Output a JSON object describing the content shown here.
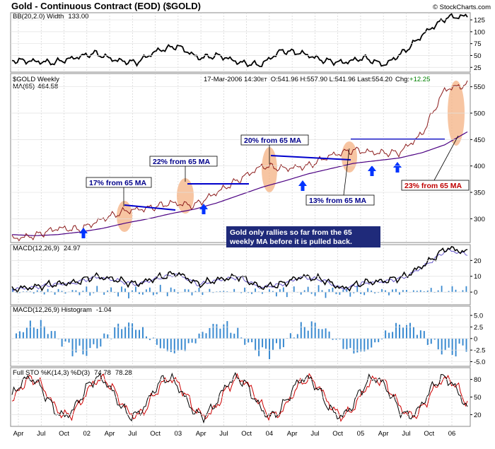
{
  "header": {
    "title": "Gold - Continuous Contract (EOD) ($GOLD)",
    "credit": "© StockCharts.com"
  },
  "panels": {
    "bb": {
      "label": "BB(20,2.0) Width",
      "value": "133.00",
      "ticks": [
        "125",
        "100",
        "75",
        "50",
        "25"
      ]
    },
    "price": {
      "symbol": "$GOLD Weekly",
      "ma_label": "MA(65)",
      "ma_value": "464.58",
      "date": "17-Mar-2006 14:30",
      "tz": "ET",
      "ohlc": "O:541.96 H:557.90 L:541.96 Last:554.20",
      "chg_label": "Chg:",
      "chg_value": "+12.25",
      "ticks": [
        "550",
        "500",
        "450",
        "400",
        "350",
        "300"
      ]
    },
    "macd": {
      "label": "MACD(12,26,9)",
      "value": "24.97",
      "ticks": [
        "20",
        "10",
        "0"
      ]
    },
    "hist": {
      "label": "MACD(12,26,9) Histogram",
      "value": "-1.04",
      "ticks": [
        "5.0",
        "2.5",
        "0",
        "-2.5",
        "-5.0"
      ]
    },
    "sto": {
      "label": "Full STO %K(14,3) %D(3)",
      "k_value": "74.78",
      "d_value": "78.28",
      "ticks": [
        "80",
        "50",
        "20"
      ]
    }
  },
  "annotations": {
    "c17": "17% from 65 MA",
    "c22": "22% from 65 MA",
    "c20": "20% from 65 MA",
    "c13": "13% from 65 MA",
    "c23": "23% from 65 MA",
    "note_line1": "Gold only rallies so far from the 65",
    "note_line2": "weekly MA before it is pulled back."
  },
  "x_axis": [
    "Apr",
    "Jul",
    "Oct",
    "02",
    "Apr",
    "Jul",
    "Oct",
    "03",
    "Apr",
    "Jul",
    "Oct",
    "04",
    "Apr",
    "Jul",
    "Oct",
    "05",
    "Apr",
    "Jul",
    "Oct",
    "06"
  ],
  "colors": {
    "price": "#8b1a1a",
    "ma": "#4b0082",
    "macd_signal": "#6a5acd",
    "histogram": "#3a8ad0",
    "callout": "#00008b",
    "highlight": "#f4b183",
    "sto_k": "#000000",
    "sto_d": "#cc0000"
  },
  "chart_data": {
    "type": "line",
    "title": "Gold - Continuous Contract (EOD) ($GOLD)",
    "x": [
      "Apr 01",
      "Jul 01",
      "Oct 01",
      "Jan 02",
      "Apr 02",
      "Jul 02",
      "Oct 02",
      "Jan 03",
      "Apr 03",
      "Jul 03",
      "Oct 03",
      "Jan 04",
      "Apr 04",
      "Jul 04",
      "Oct 04",
      "Jan 05",
      "Apr 05",
      "Jul 05",
      "Oct 05",
      "Jan 06",
      "Mar 06"
    ],
    "series": [
      {
        "name": "$GOLD Weekly",
        "values": [
          262,
          268,
          282,
          280,
          300,
          315,
          320,
          330,
          325,
          350,
          375,
          400,
          395,
          400,
          420,
          430,
          425,
          425,
          460,
          545,
          554
        ]
      },
      {
        "name": "MA(65)",
        "values": [
          270,
          268,
          270,
          275,
          282,
          292,
          300,
          310,
          318,
          330,
          345,
          360,
          372,
          385,
          395,
          405,
          410,
          415,
          425,
          440,
          464.58
        ]
      }
    ],
    "panels": [
      {
        "name": "BB(20,2.0) Width",
        "last": 133.0,
        "ylim": [
          15,
          140
        ]
      },
      {
        "name": "MACD(12,26,9)",
        "last": 24.97,
        "ylim": [
          -8,
          30
        ]
      },
      {
        "name": "MACD(12,26,9) Histogram",
        "last": -1.04,
        "ylim": [
          -6,
          7
        ]
      },
      {
        "name": "Full STO %K(14,3) %D(3)",
        "k_last": 74.78,
        "d_last": 78.28,
        "ylim": [
          0,
          100
        ]
      }
    ],
    "ylim": [
      255,
      575
    ]
  }
}
